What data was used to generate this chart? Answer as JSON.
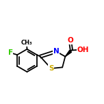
{
  "background_color": "#ffffff",
  "figsize": [
    1.52,
    1.52
  ],
  "dpi": 100,
  "bond_color": "#000000",
  "atom_colors": {
    "F": "#33cc00",
    "N": "#0000ff",
    "O": "#ff0000",
    "S": "#ccaa00",
    "C": "#000000"
  },
  "bond_width": 1.3,
  "font_size_atom": 7.5
}
